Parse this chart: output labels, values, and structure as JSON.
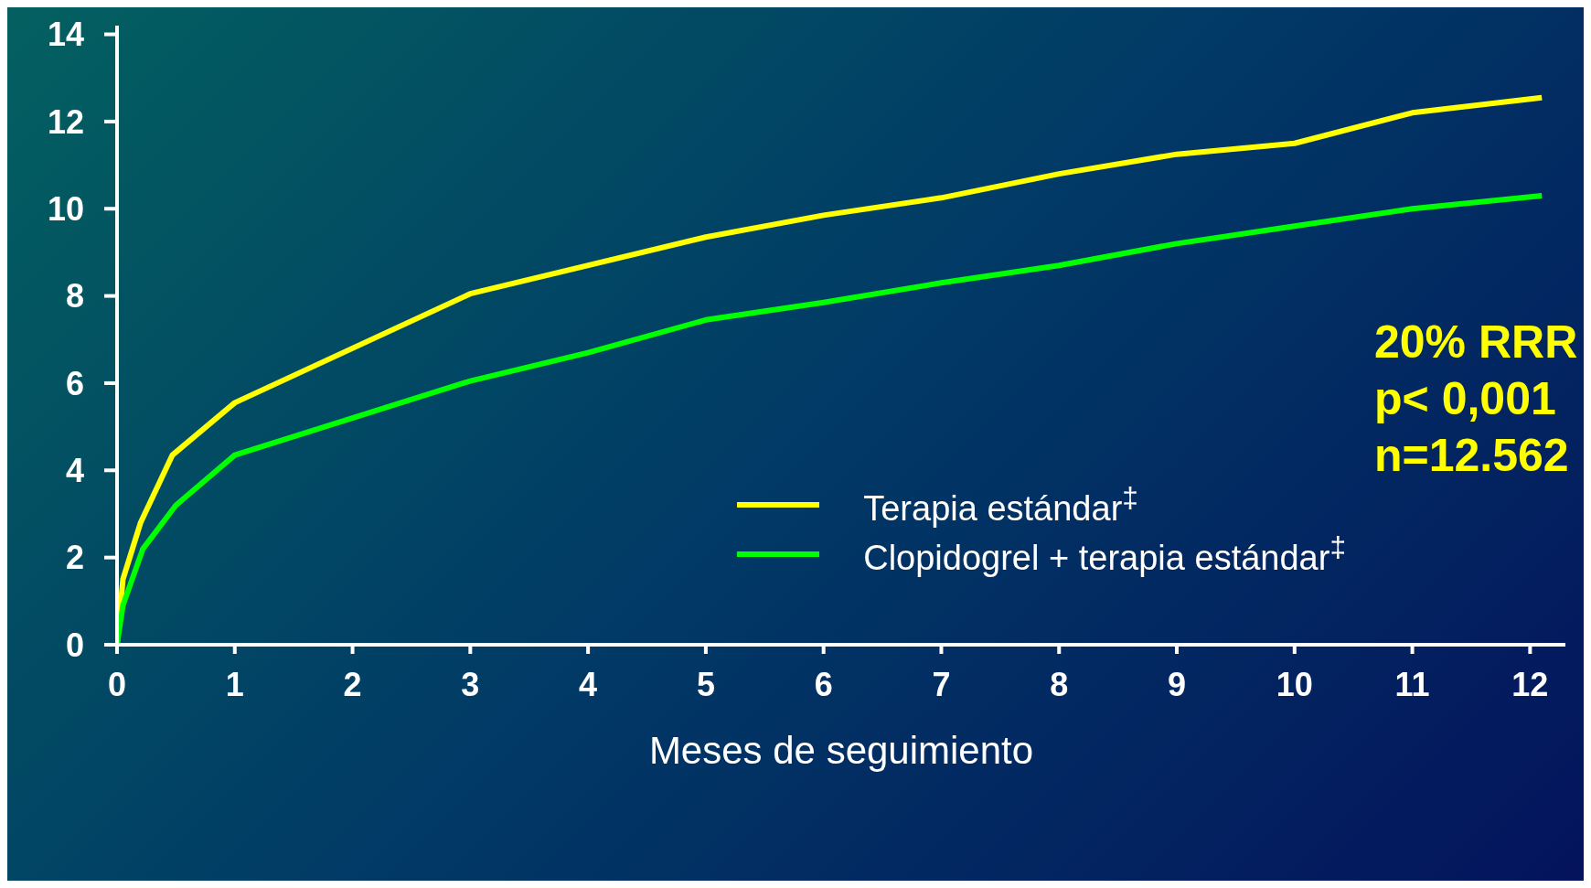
{
  "chart_data": {
    "type": "line",
    "xlabel": "Meses de seguimiento",
    "xlim": [
      0,
      12.3
    ],
    "xticks": [
      0,
      1,
      2,
      3,
      4,
      5,
      6,
      7,
      8,
      9,
      10,
      11,
      12
    ],
    "ylim": [
      0,
      14.2
    ],
    "yticks": [
      0,
      2,
      4,
      6,
      8,
      10,
      12,
      14
    ],
    "grid": false,
    "legend": "bottom right",
    "marker": "none",
    "line_style": "solid",
    "annotations": [
      "20% RRR",
      "p< 0,001",
      "n=12.562"
    ],
    "series": [
      {
        "name": "Terapia estándar$^{‡}$",
        "color": "#ffff00",
        "x": [
          0,
          0.05,
          0.2,
          0.47,
          1,
          3,
          5,
          6,
          7,
          8,
          9,
          10,
          11,
          12.1
        ],
        "values": [
          0,
          1.5,
          2.8,
          4.35,
          5.55,
          8.05,
          9.35,
          9.85,
          10.25,
          10.8,
          11.25,
          11.5,
          12.2,
          12.55
        ]
      },
      {
        "name": "Clopidogrel + terapia estándar$^{‡}$",
        "color": "#00ff00",
        "x": [
          0,
          0.05,
          0.22,
          0.5,
          1,
          3,
          4,
          5,
          6,
          7,
          8,
          9,
          10,
          11,
          12.1
        ],
        "values": [
          0,
          0.9,
          2.2,
          3.2,
          4.35,
          6.05,
          6.7,
          7.45,
          7.85,
          8.3,
          8.7,
          9.2,
          9.6,
          10.0,
          10.3
        ]
      }
    ]
  }
}
